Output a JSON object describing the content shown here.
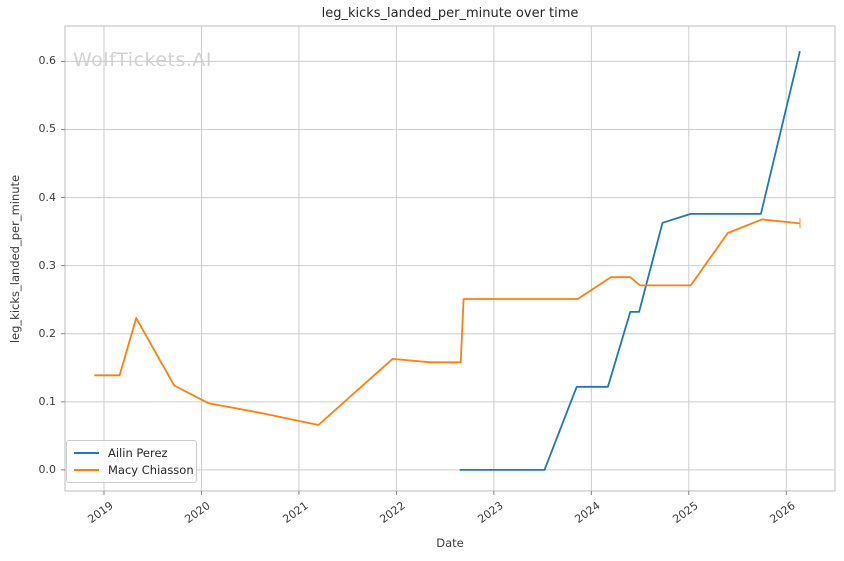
{
  "watermark": "WolfTickets.AI",
  "chart_data": {
    "type": "line",
    "title": "leg_kicks_landed_per_minute over time",
    "xlabel": "Date",
    "ylabel": "leg_kicks_landed_per_minute",
    "xlim": [
      2018.6,
      2026.5
    ],
    "ylim": [
      -0.031,
      0.652
    ],
    "xticks": [
      2019,
      2020,
      2021,
      2022,
      2023,
      2024,
      2025,
      2026
    ],
    "xtick_labels": [
      "2019",
      "2020",
      "2021",
      "2022",
      "2023",
      "2024",
      "2025",
      "2026"
    ],
    "yticks": [
      0.0,
      0.1,
      0.2,
      0.3,
      0.4,
      0.5,
      0.6
    ],
    "ytick_labels": [
      "0.0",
      "0.1",
      "0.2",
      "0.3",
      "0.4",
      "0.5",
      "0.6"
    ],
    "grid": true,
    "legend_position": "lower left",
    "grid_color": "#cccccc",
    "series": [
      {
        "name": "Ailin Perez",
        "color": "#1f77b4",
        "end_cap": false,
        "points": [
          [
            2022.65,
            0.0
          ],
          [
            2023.52,
            0.0
          ],
          [
            2023.85,
            0.122
          ],
          [
            2024.17,
            0.122
          ],
          [
            2024.4,
            0.232
          ],
          [
            2024.49,
            0.232
          ],
          [
            2024.73,
            0.363
          ],
          [
            2025.02,
            0.376
          ],
          [
            2025.74,
            0.376
          ],
          [
            2026.14,
            0.615
          ]
        ]
      },
      {
        "name": "Macy Chiasson",
        "color": "#ff7f0e",
        "end_cap": true,
        "points": [
          [
            2018.9,
            0.139
          ],
          [
            2019.16,
            0.139
          ],
          [
            2019.33,
            0.223
          ],
          [
            2019.72,
            0.124
          ],
          [
            2020.07,
            0.098
          ],
          [
            2020.6,
            0.084
          ],
          [
            2021.2,
            0.066
          ],
          [
            2021.96,
            0.163
          ],
          [
            2022.35,
            0.158
          ],
          [
            2022.66,
            0.158
          ],
          [
            2022.69,
            0.251
          ],
          [
            2023.86,
            0.251
          ],
          [
            2024.2,
            0.283
          ],
          [
            2024.4,
            0.283
          ],
          [
            2024.5,
            0.271
          ],
          [
            2025.02,
            0.271
          ],
          [
            2025.4,
            0.348
          ],
          [
            2025.75,
            0.368
          ],
          [
            2026.14,
            0.362
          ]
        ]
      }
    ]
  }
}
